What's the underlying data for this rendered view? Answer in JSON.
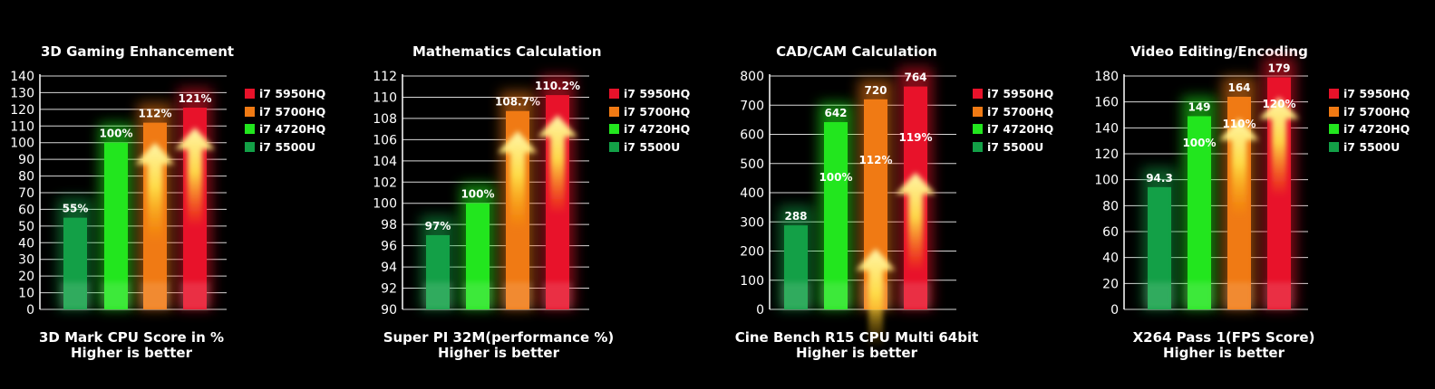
{
  "legend": [
    {
      "label": "i7 5950HQ",
      "color": "#e8122a"
    },
    {
      "label": "i7 5700HQ",
      "color": "#f07a14"
    },
    {
      "label": "i7 4720HQ",
      "color": "#22e61e"
    },
    {
      "label": "i7 5500U",
      "color": "#13a047"
    }
  ],
  "chart_data": [
    {
      "type": "bar",
      "title": "3D Gaming Enhancement",
      "xlabel": "3D Mark CPU Score in %",
      "note": "Higher is better",
      "ylim": [
        0,
        140
      ],
      "ystep": 10,
      "series": [
        {
          "name": "i7 5500U",
          "value": 55,
          "label": "55%"
        },
        {
          "name": "i7 4720HQ",
          "value": 100,
          "label": "100%"
        },
        {
          "name": "i7 5700HQ",
          "value": 112,
          "label": "112%"
        },
        {
          "name": "i7 5950HQ",
          "value": 121,
          "label": "121%"
        }
      ]
    },
    {
      "type": "bar",
      "title": "Mathematics Calculation",
      "xlabel": "Super PI 32M(performance %)",
      "note": "Higher is better",
      "ylim": [
        90,
        112
      ],
      "ystep": 2,
      "series": [
        {
          "name": "i7 5500U",
          "value": 97,
          "label": "97%"
        },
        {
          "name": "i7 4720HQ",
          "value": 100,
          "label": "100%"
        },
        {
          "name": "i7 5700HQ",
          "value": 108.7,
          "label": "108.7%"
        },
        {
          "name": "i7 5950HQ",
          "value": 110.2,
          "label": "110.2%"
        }
      ]
    },
    {
      "type": "bar",
      "title": "CAD/CAM Calculation",
      "xlabel": "Cine Bench R15 CPU Multi 64bit",
      "note": "Higher is better",
      "ylim": [
        0,
        800
      ],
      "ystep": 100,
      "series": [
        {
          "name": "i7 5500U",
          "value": 288,
          "label": "288",
          "pct": ""
        },
        {
          "name": "i7 4720HQ",
          "value": 642,
          "label": "642",
          "pct": "100%"
        },
        {
          "name": "i7 5700HQ",
          "value": 720,
          "label": "720",
          "pct": "112%"
        },
        {
          "name": "i7 5950HQ",
          "value": 764,
          "label": "764",
          "pct": "119%"
        }
      ]
    },
    {
      "type": "bar",
      "title": "Video Editing/Encoding",
      "xlabel": "X264 Pass 1(FPS Score)",
      "note": "Higher is better",
      "ylim": [
        0,
        180
      ],
      "ystep": 20,
      "series": [
        {
          "name": "i7 5500U",
          "value": 94.3,
          "label": "94.3",
          "pct": ""
        },
        {
          "name": "i7 4720HQ",
          "value": 149,
          "label": "149",
          "pct": "100%"
        },
        {
          "name": "i7 5700HQ",
          "value": 164,
          "label": "164",
          "pct": "110%"
        },
        {
          "name": "i7 5950HQ",
          "value": 179,
          "label": "179",
          "pct": "120%"
        }
      ]
    }
  ]
}
